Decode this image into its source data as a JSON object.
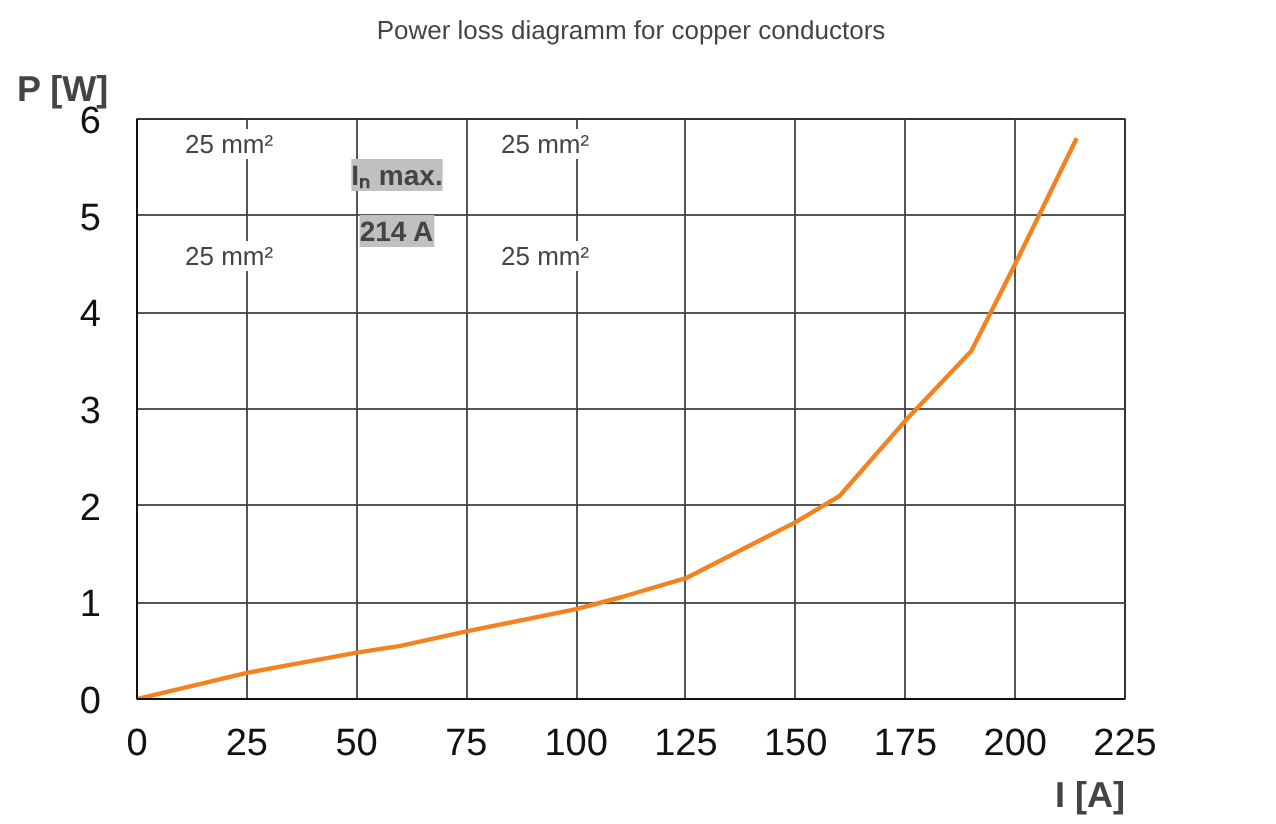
{
  "chart_data": {
    "type": "line",
    "subtitle": "Power loss diagramm for copper conductors",
    "xlabel": "I [A]",
    "ylabel": "P [W]",
    "x": [
      0,
      25,
      50,
      60,
      75,
      100,
      110,
      125,
      150,
      160,
      175,
      190,
      200,
      214
    ],
    "series": [
      {
        "color": "#f5821f",
        "values": [
          0,
          0.27,
          0.48,
          0.55,
          0.7,
          0.93,
          1.05,
          1.25,
          1.83,
          2.1,
          2.88,
          3.6,
          4.5,
          5.8
        ]
      }
    ],
    "xlim": [
      0,
      225
    ],
    "ylim": [
      0,
      6
    ],
    "xticks": [
      0,
      25,
      50,
      75,
      100,
      125,
      150,
      175,
      200,
      225
    ],
    "yticks": [
      0,
      1,
      2,
      3,
      4,
      5,
      6
    ],
    "grid": true,
    "marker": "none",
    "line_style": "solid",
    "annotations": [
      "25 mm²",
      "25 mm²",
      "25 mm²",
      "25 mm²",
      "Iₙ max.",
      "214 A"
    ]
  }
}
